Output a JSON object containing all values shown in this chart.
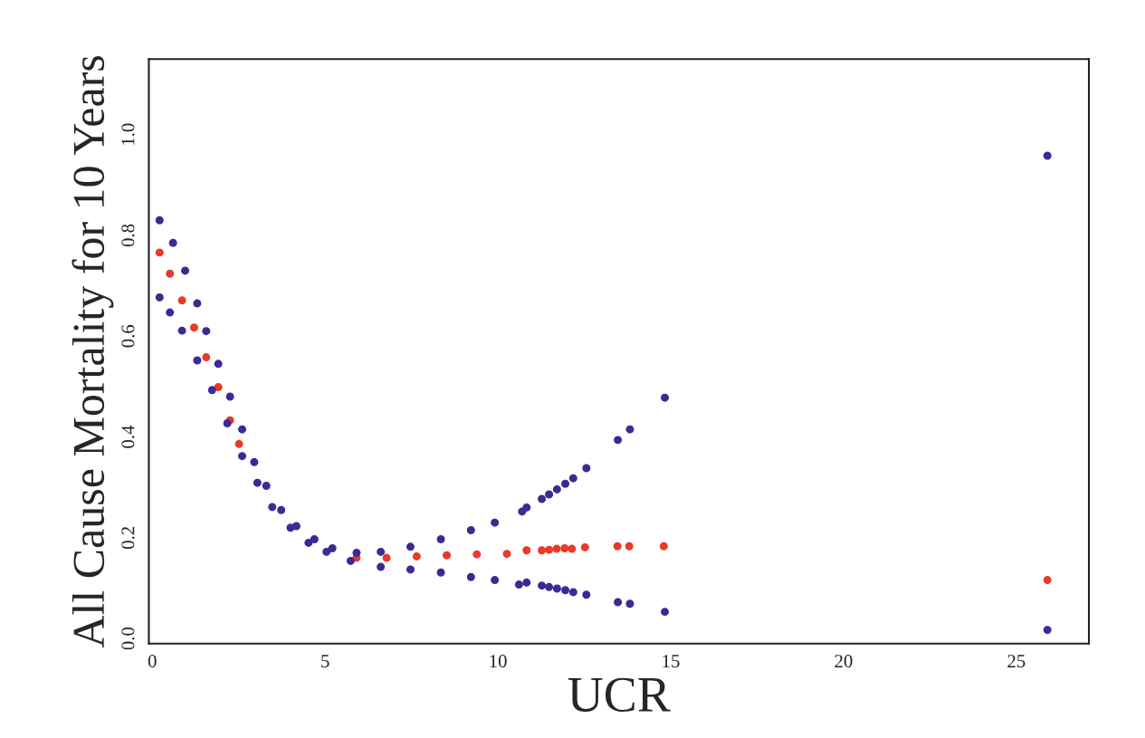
{
  "chart_data": {
    "type": "scatter",
    "xlabel": "UCR",
    "ylabel": "All Cause Mortality for 10 Years",
    "xlim": [
      -0.1,
      27.1
    ],
    "ylim": [
      -0.01,
      1.15
    ],
    "xticks": [
      0,
      5,
      10,
      15,
      20,
      25
    ],
    "yticks": [
      {
        "value": 0,
        "label": "0.0"
      },
      {
        "value": 0.2,
        "label": "0.2"
      },
      {
        "value": 0.4,
        "label": "0.4"
      },
      {
        "value": 0.6,
        "label": "0.6"
      },
      {
        "value": 0.8,
        "label": "0.8"
      },
      {
        "value": 1.0,
        "label": "1.0"
      }
    ],
    "marker": "circle",
    "grid": false,
    "legend": false,
    "series": [
      {
        "color": "#e8392a",
        "x": [
          0.21,
          0.51,
          0.86,
          1.21,
          1.56,
          1.91,
          2.25,
          2.51,
          5.91,
          6.78,
          7.65,
          8.52,
          9.39,
          10.26,
          10.83,
          11.27,
          11.48,
          11.7,
          11.93,
          12.14,
          12.52,
          13.46,
          13.8,
          14.8,
          25.9
        ],
        "values": [
          0.766,
          0.724,
          0.671,
          0.617,
          0.558,
          0.499,
          0.433,
          0.386,
          0.16,
          0.16,
          0.163,
          0.165,
          0.167,
          0.168,
          0.175,
          0.175,
          0.176,
          0.178,
          0.179,
          0.178,
          0.181,
          0.183,
          0.183,
          0.183,
          0.116
        ]
      },
      {
        "color": "#3b2a96",
        "x": [
          0.21,
          0.6,
          0.95,
          1.3,
          1.56,
          1.91,
          2.25,
          2.6,
          2.95,
          3.3,
          3.73,
          4.17,
          4.69,
          5.21,
          5.91,
          6.61,
          7.47,
          8.35,
          9.22,
          9.91,
          10.7,
          10.83,
          11.27,
          11.48,
          11.71,
          11.95,
          12.18,
          12.56,
          13.47,
          13.82,
          14.83,
          25.9
        ],
        "values": [
          0.83,
          0.785,
          0.73,
          0.665,
          0.61,
          0.545,
          0.48,
          0.415,
          0.35,
          0.303,
          0.255,
          0.223,
          0.197,
          0.179,
          0.17,
          0.172,
          0.182,
          0.197,
          0.215,
          0.23,
          0.252,
          0.26,
          0.277,
          0.286,
          0.296,
          0.307,
          0.318,
          0.338,
          0.394,
          0.415,
          0.478,
          0.958
        ]
      },
      {
        "color": "#3b2a96",
        "x": [
          0.21,
          0.51,
          0.86,
          1.3,
          1.73,
          2.17,
          2.6,
          3.04,
          3.47,
          4.0,
          4.52,
          5.04,
          5.74,
          6.61,
          7.47,
          8.35,
          9.22,
          9.91,
          10.61,
          10.83,
          11.27,
          11.48,
          11.71,
          11.95,
          12.18,
          12.56,
          13.47,
          13.82,
          14.83,
          25.9
        ],
        "values": [
          0.677,
          0.647,
          0.611,
          0.552,
          0.493,
          0.427,
          0.362,
          0.309,
          0.261,
          0.22,
          0.19,
          0.172,
          0.154,
          0.142,
          0.137,
          0.131,
          0.122,
          0.116,
          0.107,
          0.111,
          0.105,
          0.102,
          0.099,
          0.096,
          0.092,
          0.087,
          0.072,
          0.069,
          0.053,
          0.017
        ]
      }
    ]
  }
}
